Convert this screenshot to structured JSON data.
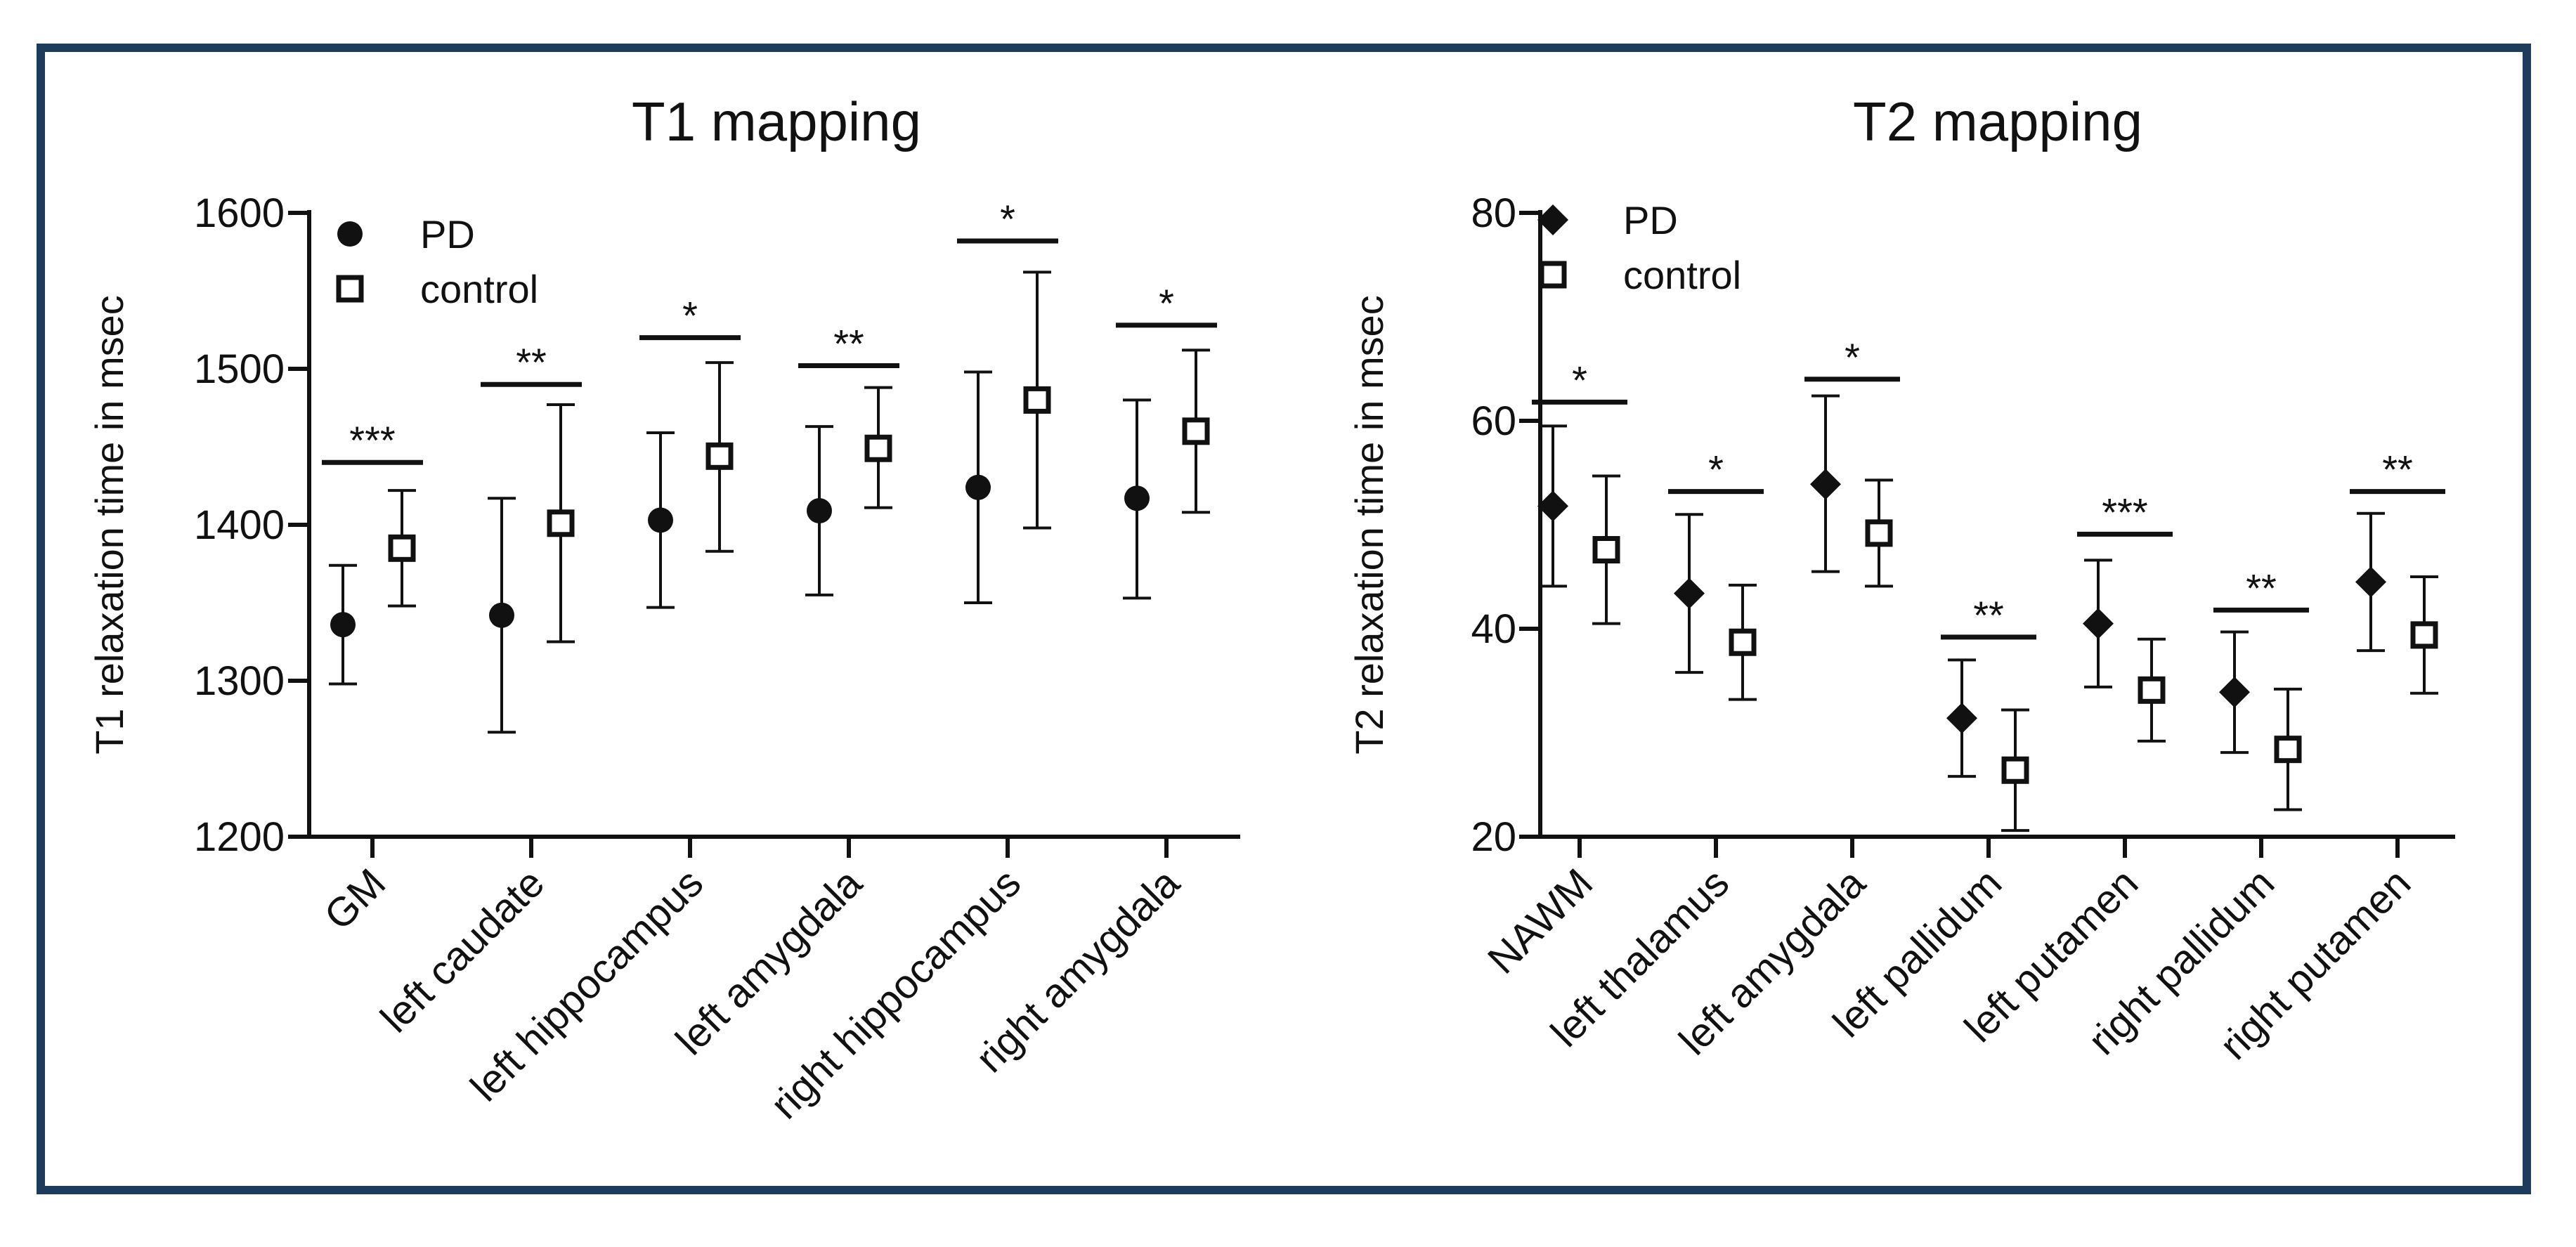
{
  "colors": {
    "frame": "#1f3b5b",
    "ink": "#111111",
    "background": "#ffffff"
  },
  "chart_data": [
    {
      "type": "scatter",
      "title": "T1 mapping",
      "xlabel": "",
      "ylabel": "T1 relaxation time in msec",
      "ylim": [
        1200,
        1600
      ],
      "yticks": [
        "1200",
        "1300",
        "1400",
        "1500",
        "1600"
      ],
      "grid": false,
      "legend_position": "top-left",
      "categories": [
        "GM",
        "left caudate",
        "left hippocampus",
        "left amygdala",
        "right hippocampus",
        "right amygdala"
      ],
      "series": [
        {
          "name": "PD",
          "marker": "filled-circle",
          "values": [
            1336,
            1342,
            1403,
            1409,
            1424,
            1417
          ],
          "err_low": [
            1298,
            1267,
            1347,
            1355,
            1350,
            1353
          ],
          "err_high": [
            1374,
            1417,
            1459,
            1463,
            1498,
            1480
          ]
        },
        {
          "name": "control",
          "marker": "open-square",
          "values": [
            1385,
            1401,
            1444,
            1449,
            1480,
            1460
          ],
          "err_low": [
            1348,
            1325,
            1383,
            1411,
            1398,
            1408
          ],
          "err_high": [
            1422,
            1477,
            1504,
            1488,
            1562,
            1512
          ]
        }
      ],
      "significance": [
        {
          "label": "***",
          "y": 1440
        },
        {
          "label": "**",
          "y": 1490
        },
        {
          "label": "*",
          "y": 1520
        },
        {
          "label": "**",
          "y": 1502
        },
        {
          "label": "*",
          "y": 1582
        },
        {
          "label": "*",
          "y": 1528
        }
      ]
    },
    {
      "type": "scatter",
      "title": "T2 mapping",
      "xlabel": "",
      "ylabel": "T2 relaxation time in msec",
      "ylim": [
        20,
        80
      ],
      "yticks": [
        "20",
        "40",
        "60",
        "80"
      ],
      "grid": false,
      "legend_position": "top-left",
      "categories": [
        "NAWM",
        "left thalamus",
        "left amygdala",
        "left pallidum",
        "left putamen",
        "right pallidum",
        "right putamen"
      ],
      "series": [
        {
          "name": "PD",
          "marker": "filled-diamond",
          "values": [
            51.8,
            43.4,
            53.9,
            31.4,
            40.5,
            33.9,
            44.5
          ],
          "err_low": [
            44.1,
            35.8,
            45.5,
            25.8,
            34.4,
            28.1,
            37.9
          ],
          "err_high": [
            59.5,
            51.0,
            62.4,
            37.0,
            46.6,
            39.7,
            51.1
          ]
        },
        {
          "name": "control",
          "marker": "open-square",
          "values": [
            47.6,
            38.7,
            49.2,
            26.4,
            34.1,
            28.4,
            39.4
          ],
          "err_low": [
            40.5,
            33.2,
            44.1,
            20.6,
            29.2,
            22.6,
            33.8
          ],
          "err_high": [
            54.7,
            44.2,
            54.3,
            32.2,
            39.0,
            34.2,
            45.0
          ]
        }
      ],
      "significance": [
        {
          "label": "*",
          "y": 61.8
        },
        {
          "label": "*",
          "y": 53.2
        },
        {
          "label": "*",
          "y": 64.0
        },
        {
          "label": "**",
          "y": 39.2
        },
        {
          "label": "***",
          "y": 49.1
        },
        {
          "label": "**",
          "y": 41.8
        },
        {
          "label": "**",
          "y": 53.2
        }
      ]
    }
  ]
}
